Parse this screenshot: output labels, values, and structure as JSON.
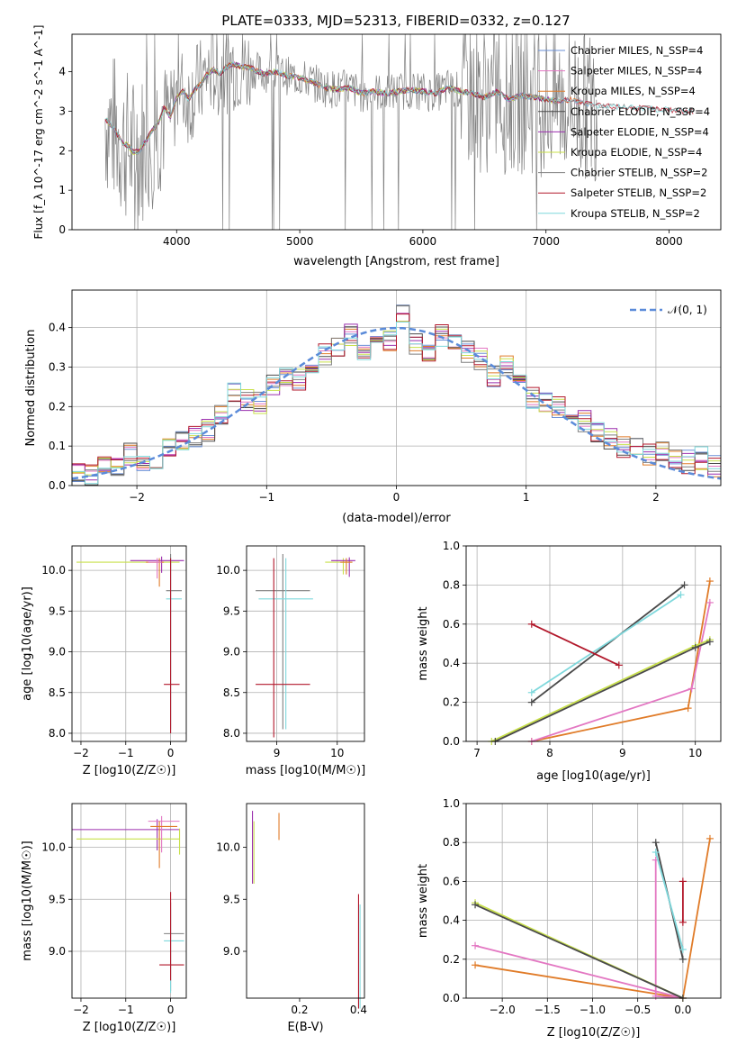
{
  "figure": {
    "title": "PLATE=0333, MJD=52313, FIBERID=0332, z=0.127"
  },
  "colors": {
    "chabrier_miles": "#6a8fd6",
    "salpeter_miles": "#e377c2",
    "kroupa_miles": "#e07b28",
    "chabrier_elodie": "#4a4a4a",
    "salpeter_elodie": "#9b2fae",
    "kroupa_elodie": "#c8e04a",
    "chabrier_stelib": "#7f7f7f",
    "salpeter_stelib": "#b2182b",
    "kroupa_stelib": "#7fd8dc",
    "normal_curve": "#5b8bd9",
    "observed_spectrum": "#808080"
  },
  "chart_data": [
    {
      "id": "spectrum",
      "type": "line",
      "xlabel": "wavelength [Angstrom, rest frame]",
      "ylabel": "Flux [f_λ 10^-17 erg cm^-2 s^-1 A^-1]",
      "xlim": [
        3150,
        8420
      ],
      "ylim": [
        0,
        4.95
      ],
      "xticks": [
        "4000",
        "5000",
        "6000",
        "7000",
        "8000"
      ],
      "yticks": [
        "0",
        "1",
        "2",
        "3",
        "4"
      ],
      "grid": false,
      "legend": "top-right",
      "legend_entries": [
        "Chabrier MILES, N_SSP=4",
        "Salpeter MILES, N_SSP=4",
        "Kroupa MILES, N_SSP=4",
        "Chabrier ELODIE, N_SSP=4",
        "Salpeter ELODIE, N_SSP=4",
        "Kroupa ELODIE, N_SSP=4",
        "Chabrier STELIB, N_SSP=2",
        "Salpeter STELIB, N_SSP=2",
        "Kroupa STELIB, N_SSP=2"
      ],
      "model_x": [
        3420,
        3480,
        3530,
        3560,
        3600,
        3650,
        3700,
        3750,
        3800,
        3850,
        3900,
        3950,
        4000,
        4050,
        4100,
        4150,
        4200,
        4250,
        4300,
        4350,
        4400,
        4450,
        4500,
        4600,
        4700,
        4800,
        4900,
        5000,
        5100,
        5200,
        5300,
        5400,
        5500,
        5600,
        5700,
        5800,
        5900,
        6000,
        6100,
        6200,
        6300,
        6400,
        6500,
        6600,
        6700,
        6800,
        6900,
        7000,
        7100,
        7200,
        7300,
        7400
      ],
      "model_y": [
        2.8,
        2.6,
        2.35,
        2.2,
        2.15,
        1.95,
        2.0,
        2.25,
        2.5,
        2.7,
        3.1,
        2.85,
        3.35,
        3.5,
        3.3,
        3.55,
        3.7,
        3.95,
        4.05,
        3.95,
        4.1,
        4.2,
        4.15,
        4.1,
        3.95,
        4.0,
        3.9,
        3.85,
        3.75,
        3.6,
        3.55,
        3.6,
        3.45,
        3.5,
        3.45,
        3.5,
        3.55,
        3.5,
        3.45,
        3.6,
        3.5,
        3.45,
        3.35,
        3.5,
        3.3,
        3.4,
        3.35,
        3.3,
        3.25,
        3.3,
        3.2,
        3.15
      ],
      "observed_range": [
        3420,
        7420
      ],
      "observed_median": 3.4
    },
    {
      "id": "residuals",
      "type": "line",
      "xlabel": "(data-model)/error",
      "ylabel": "Normed distribution",
      "xlim": [
        -2.5,
        2.5
      ],
      "ylim": [
        0,
        0.495
      ],
      "xticks": [
        "−2",
        "−1",
        "0",
        "1",
        "2"
      ],
      "yticks": [
        "0.0",
        "0.1",
        "0.2",
        "0.3",
        "0.4"
      ],
      "grid": true,
      "legend": "top-right",
      "legend_entries": [
        "𝒩(0, 1)"
      ],
      "bins": [
        -2.5,
        -2.4,
        -2.3,
        -2.2,
        -2.1,
        -2.0,
        -1.9,
        -1.8,
        -1.7,
        -1.6,
        -1.5,
        -1.4,
        -1.3,
        -1.2,
        -1.1,
        -1.0,
        -0.9,
        -0.8,
        -0.7,
        -0.6,
        -0.5,
        -0.4,
        -0.3,
        -0.2,
        -0.1,
        0.0,
        0.1,
        0.2,
        0.3,
        0.4,
        0.5,
        0.6,
        0.7,
        0.8,
        0.9,
        1.0,
        1.1,
        1.2,
        1.3,
        1.4,
        1.5,
        1.6,
        1.7,
        1.8,
        1.9,
        2.0,
        2.1,
        2.2,
        2.3,
        2.4,
        2.5
      ],
      "hist_values": [
        0.03,
        0.025,
        0.05,
        0.045,
        0.08,
        0.065,
        0.07,
        0.1,
        0.11,
        0.12,
        0.14,
        0.18,
        0.24,
        0.22,
        0.21,
        0.25,
        0.28,
        0.27,
        0.3,
        0.33,
        0.35,
        0.38,
        0.34,
        0.36,
        0.37,
        0.44,
        0.36,
        0.34,
        0.38,
        0.37,
        0.34,
        0.32,
        0.28,
        0.3,
        0.26,
        0.22,
        0.21,
        0.2,
        0.18,
        0.16,
        0.14,
        0.12,
        0.1,
        0.09,
        0.08,
        0.09,
        0.07,
        0.06,
        0.07,
        0.05
      ]
    },
    {
      "id": "age-vs-Z",
      "type": "scatter",
      "xlabel": "Z [log10(Z/Z☉)]",
      "ylabel": "age [log10(age/yr)]",
      "xlim": [
        -2.2,
        0.35
      ],
      "ylim": [
        7.9,
        10.3
      ],
      "xticks": [
        "−2",
        "−1",
        "0"
      ],
      "yticks": [
        "8.0",
        "8.5",
        "9.0",
        "9.5",
        "10.0"
      ],
      "grid": true,
      "points": [
        {
          "x": 0.0,
          "y": 10.1
        },
        {
          "x": -0.3,
          "y": 10.1
        },
        {
          "x": 0.0,
          "y": 9.75
        },
        {
          "x": 0.0,
          "y": 9.65
        },
        {
          "x": 0.0,
          "y": 8.6
        },
        {
          "x": -0.3,
          "y": 10.12
        }
      ]
    },
    {
      "id": "age-vs-mass",
      "type": "scatter",
      "xlabel": "mass [log10(M/M☉)]",
      "ylabel": "",
      "xlim": [
        8.5,
        10.45
      ],
      "ylim": [
        7.9,
        10.3
      ],
      "xticks": [
        "9",
        "10"
      ],
      "yticks": [
        "8.0",
        "8.5",
        "9.0",
        "9.5",
        "10.0"
      ],
      "grid": true,
      "points": [
        {
          "x": 9.1,
          "y": 9.75
        },
        {
          "x": 9.15,
          "y": 9.65
        },
        {
          "x": 8.95,
          "y": 8.6
        },
        {
          "x": 10.1,
          "y": 10.1
        },
        {
          "x": 10.2,
          "y": 10.12
        }
      ]
    },
    {
      "id": "massweight-vs-age",
      "type": "line",
      "xlabel": "age [log10(age/yr)]",
      "ylabel": "mass weight",
      "xlim": [
        6.85,
        10.35
      ],
      "ylim": [
        0,
        1.0
      ],
      "xticks": [
        "7",
        "8",
        "9",
        "10"
      ],
      "yticks": [
        "0.0",
        "0.2",
        "0.4",
        "0.6",
        "0.8",
        "1.0"
      ],
      "grid": true,
      "series": [
        {
          "color_key": "kroupa_miles",
          "x": [
            7.75,
            9.9,
            10.2
          ],
          "y": [
            0.0,
            0.17,
            0.82
          ]
        },
        {
          "color_key": "salpeter_miles",
          "x": [
            7.75,
            9.95,
            10.2
          ],
          "y": [
            0.0,
            0.27,
            0.71
          ]
        },
        {
          "color_key": "kroupa_elodie",
          "x": [
            7.2,
            10.0,
            10.2
          ],
          "y": [
            0.0,
            0.49,
            0.52
          ]
        },
        {
          "color_key": "chabrier_elodie",
          "x": [
            7.25,
            10.0,
            10.2
          ],
          "y": [
            0.0,
            0.48,
            0.51
          ]
        },
        {
          "color_key": "chabrier_elodie",
          "x": [
            7.75,
            9.85
          ],
          "y": [
            0.2,
            0.8
          ]
        },
        {
          "color_key": "kroupa_stelib",
          "x": [
            7.75,
            9.8
          ],
          "y": [
            0.25,
            0.75
          ]
        },
        {
          "color_key": "salpeter_stelib",
          "x": [
            7.75,
            8.95
          ],
          "y": [
            0.6,
            0.39
          ]
        }
      ]
    },
    {
      "id": "mass-vs-Z",
      "type": "scatter",
      "xlabel": "Z [log10(Z/Z☉)]",
      "ylabel": "mass [log10(M/M☉)]",
      "xlim": [
        -2.2,
        0.35
      ],
      "ylim": [
        8.55,
        10.42
      ],
      "xticks": [
        "−2",
        "−1",
        "0"
      ],
      "yticks": [
        "9.0",
        "9.5",
        "10.0"
      ],
      "grid": true,
      "points": [
        {
          "x": -0.3,
          "y": 10.17
        },
        {
          "x": 0.2,
          "y": 10.08
        },
        {
          "x": 0.0,
          "y": 9.17
        },
        {
          "x": 0.0,
          "y": 9.1
        },
        {
          "x": 0.0,
          "y": 8.87
        },
        {
          "x": -0.3,
          "y": 10.25
        }
      ]
    },
    {
      "id": "mass-vs-EBV",
      "type": "scatter",
      "xlabel": "E(B-V)",
      "ylabel": "",
      "xlim": [
        0.02,
        0.42
      ],
      "ylim": [
        8.55,
        10.42
      ],
      "xticks": [
        "0.2",
        "0.4"
      ],
      "yticks": [
        "9.0",
        "9.5",
        "10.0"
      ],
      "grid": false,
      "points": [
        {
          "x": 0.04,
          "y": 10.0
        },
        {
          "x": 0.13,
          "y": 10.2
        },
        {
          "x": 0.4,
          "y": 9.0
        }
      ]
    },
    {
      "id": "massweight-vs-Z",
      "type": "line",
      "xlabel": "Z [log10(Z/Z☉)]",
      "ylabel": "mass weight",
      "xlim": [
        -2.4,
        0.42
      ],
      "ylim": [
        0,
        1.0
      ],
      "xticks": [
        "−2.0",
        "−1.5",
        "−1.0",
        "−0.5",
        "0.0"
      ],
      "yticks": [
        "0.0",
        "0.2",
        "0.4",
        "0.6",
        "0.8",
        "1.0"
      ],
      "grid": true,
      "series": [
        {
          "color_key": "kroupa_miles",
          "x": [
            -2.3,
            0.0,
            0.3
          ],
          "y": [
            0.17,
            0.0,
            0.82
          ]
        },
        {
          "color_key": "salpeter_miles",
          "x": [
            -2.3,
            0.0,
            -0.3,
            -0.3
          ],
          "y": [
            0.27,
            0.0,
            0.01,
            0.71
          ]
        },
        {
          "color_key": "kroupa_elodie",
          "x": [
            -2.3,
            0.0
          ],
          "y": [
            0.49,
            0.0
          ]
        },
        {
          "color_key": "chabrier_elodie",
          "x": [
            -2.3,
            0.0
          ],
          "y": [
            0.48,
            0.0
          ]
        },
        {
          "color_key": "chabrier_elodie",
          "x": [
            -0.3,
            0.0
          ],
          "y": [
            0.8,
            0.2
          ]
        },
        {
          "color_key": "kroupa_stelib",
          "x": [
            -0.3,
            0.0
          ],
          "y": [
            0.75,
            0.25
          ]
        },
        {
          "color_key": "salpeter_stelib",
          "x": [
            0.0,
            0.0
          ],
          "y": [
            0.6,
            0.39
          ]
        }
      ]
    }
  ]
}
